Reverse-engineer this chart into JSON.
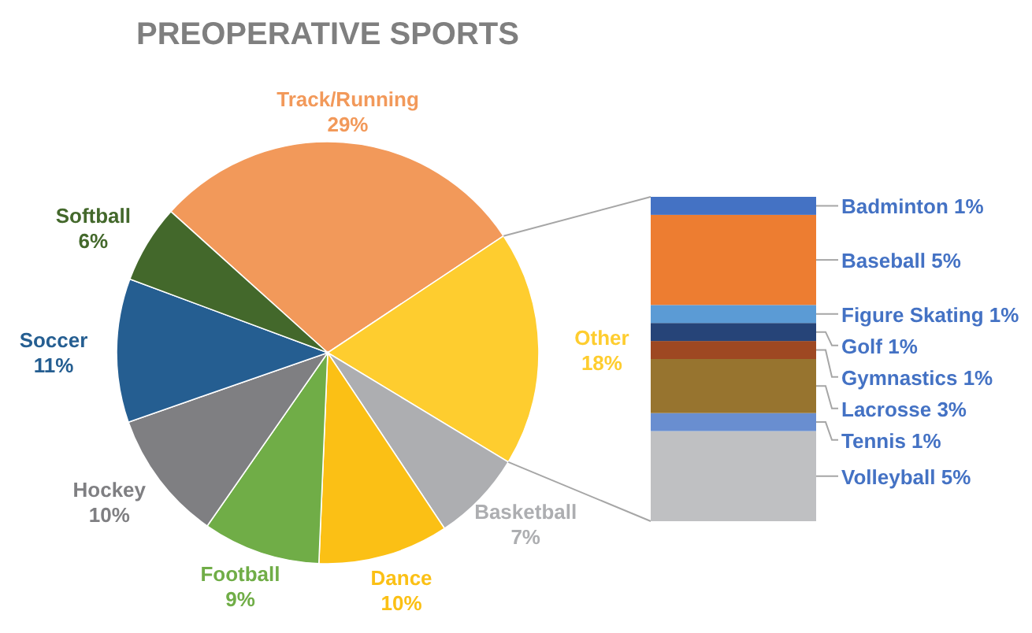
{
  "chart_data": [
    {
      "type": "pie",
      "title": "PREOPERATIVE SPORTS",
      "categories": [
        "Track/Running",
        "Other",
        "Basketball",
        "Dance",
        "Football",
        "Hockey",
        "Soccer",
        "Softball"
      ],
      "values": [
        29,
        18,
        7,
        10,
        9,
        10,
        11,
        6
      ],
      "colors": [
        "#f2995a",
        "#fecd2f",
        "#adaeb1",
        "#fbc015",
        "#70ad47",
        "#7f7f82",
        "#255e91",
        "#43682b"
      ],
      "value_labels": [
        "29%",
        "18%",
        "7%",
        "10%",
        "9%",
        "10%",
        "11%",
        "6%"
      ]
    },
    {
      "type": "bar",
      "stacked": true,
      "categories": [
        null
      ],
      "series": [
        {
          "color": "#bfc0c2",
          "values": [
            5
          ],
          "value_labels": [
            "Volleyball 5%"
          ]
        },
        {
          "color": "#698ed0",
          "values": [
            1
          ],
          "value_labels": [
            "Tennis 1%"
          ]
        },
        {
          "color": "#97742f",
          "values": [
            3
          ],
          "value_labels": [
            "Lacrosse 3%"
          ]
        },
        {
          "color": "#9e4822",
          "values": [
            1
          ],
          "value_labels": [
            "Gymnastics 1%"
          ]
        },
        {
          "color": "#264478",
          "values": [
            1
          ],
          "value_labels": [
            "Golf 1%"
          ]
        },
        {
          "color": "#5b9bd5",
          "values": [
            1
          ],
          "value_labels": [
            "Figure Skating 1%"
          ]
        },
        {
          "color": "#ed7d31",
          "values": [
            5
          ],
          "value_labels": [
            "Baseball 5%"
          ]
        },
        {
          "color": "#4472c4",
          "values": [
            1
          ],
          "value_labels": [
            "Badminton 1%"
          ]
        }
      ]
    }
  ]
}
